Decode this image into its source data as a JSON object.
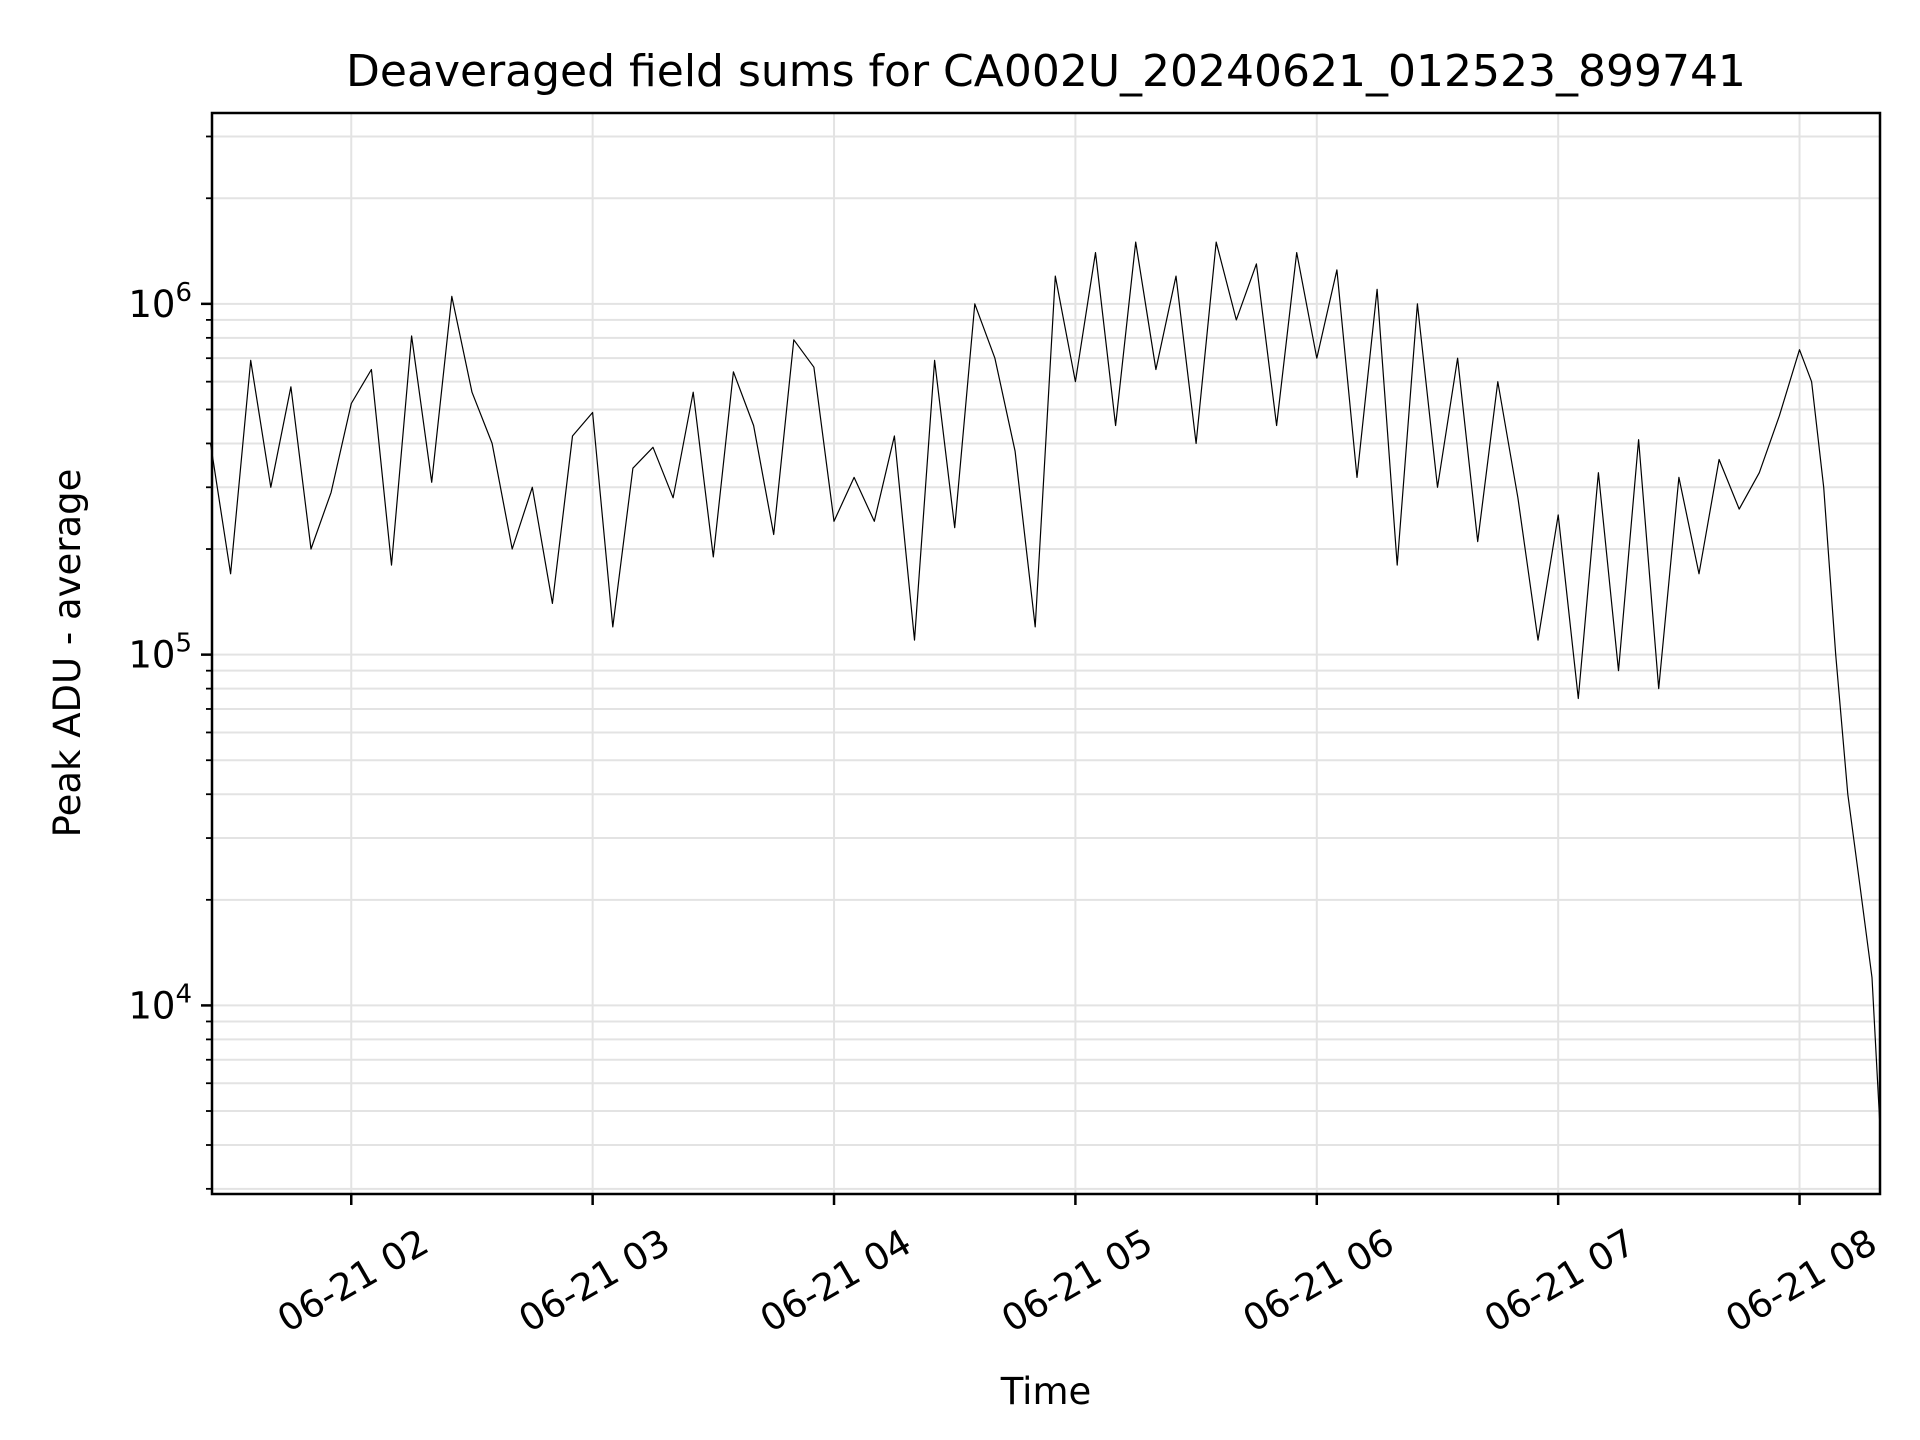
{
  "chart_data": {
    "type": "line",
    "title": "Deaveraged field sums for CA002U_20240621_012523_899741",
    "xlabel": "Time",
    "ylabel": "Peak ADU - average",
    "yscale": "log",
    "ylim": [
      2900,
      3500000
    ],
    "xlim": [
      "2024-06-21T01:25:23",
      "2024-06-21T08:20:00"
    ],
    "grid": true,
    "line_color": "#000000",
    "xticks": [
      {
        "t": "2024-06-21T02:00",
        "label": "06-21 02"
      },
      {
        "t": "2024-06-21T03:00",
        "label": "06-21 03"
      },
      {
        "t": "2024-06-21T04:00",
        "label": "06-21 04"
      },
      {
        "t": "2024-06-21T05:00",
        "label": "06-21 05"
      },
      {
        "t": "2024-06-21T06:00",
        "label": "06-21 06"
      },
      {
        "t": "2024-06-21T07:00",
        "label": "06-21 07"
      },
      {
        "t": "2024-06-21T08:00",
        "label": "06-21 08"
      }
    ],
    "yticks": [
      {
        "value": 10000,
        "base": "10",
        "exp": "4"
      },
      {
        "value": 100000,
        "base": "10",
        "exp": "5"
      },
      {
        "value": 1000000,
        "base": "10",
        "exp": "6"
      }
    ],
    "series": [
      {
        "x": [
          "2024-06-21T01:25",
          "2024-06-21T01:30",
          "2024-06-21T01:35",
          "2024-06-21T01:40",
          "2024-06-21T01:45",
          "2024-06-21T01:50",
          "2024-06-21T01:55",
          "2024-06-21T02:00",
          "2024-06-21T02:05",
          "2024-06-21T02:10",
          "2024-06-21T02:15",
          "2024-06-21T02:20",
          "2024-06-21T02:25",
          "2024-06-21T02:30",
          "2024-06-21T02:35",
          "2024-06-21T02:40",
          "2024-06-21T02:45",
          "2024-06-21T02:50",
          "2024-06-21T02:55",
          "2024-06-21T03:00",
          "2024-06-21T03:05",
          "2024-06-21T03:10",
          "2024-06-21T03:15",
          "2024-06-21T03:20",
          "2024-06-21T03:25",
          "2024-06-21T03:30",
          "2024-06-21T03:35",
          "2024-06-21T03:40",
          "2024-06-21T03:45",
          "2024-06-21T03:50",
          "2024-06-21T03:55",
          "2024-06-21T04:00",
          "2024-06-21T04:05",
          "2024-06-21T04:10",
          "2024-06-21T04:15",
          "2024-06-21T04:20",
          "2024-06-21T04:25",
          "2024-06-21T04:30",
          "2024-06-21T04:35",
          "2024-06-21T04:40",
          "2024-06-21T04:45",
          "2024-06-21T04:50",
          "2024-06-21T04:55",
          "2024-06-21T05:00",
          "2024-06-21T05:05",
          "2024-06-21T05:10",
          "2024-06-21T05:15",
          "2024-06-21T05:20",
          "2024-06-21T05:25",
          "2024-06-21T05:30",
          "2024-06-21T05:35",
          "2024-06-21T05:40",
          "2024-06-21T05:45",
          "2024-06-21T05:50",
          "2024-06-21T05:55",
          "2024-06-21T06:00",
          "2024-06-21T06:05",
          "2024-06-21T06:10",
          "2024-06-21T06:15",
          "2024-06-21T06:20",
          "2024-06-21T06:25",
          "2024-06-21T06:30",
          "2024-06-21T06:35",
          "2024-06-21T06:40",
          "2024-06-21T06:45",
          "2024-06-21T06:50",
          "2024-06-21T06:55",
          "2024-06-21T07:00",
          "2024-06-21T07:05",
          "2024-06-21T07:10",
          "2024-06-21T07:15",
          "2024-06-21T07:20",
          "2024-06-21T07:25",
          "2024-06-21T07:30",
          "2024-06-21T07:35",
          "2024-06-21T07:40",
          "2024-06-21T07:45",
          "2024-06-21T07:50",
          "2024-06-21T07:55",
          "2024-06-21T08:00",
          "2024-06-21T08:03",
          "2024-06-21T08:06",
          "2024-06-21T08:09",
          "2024-06-21T08:12",
          "2024-06-21T08:15",
          "2024-06-21T08:18",
          "2024-06-21T08:20"
        ],
        "y": [
          400000,
          170000,
          690000,
          300000,
          580000,
          200000,
          290000,
          520000,
          650000,
          180000,
          810000,
          310000,
          1050000,
          560000,
          400000,
          200000,
          300000,
          140000,
          420000,
          490000,
          120000,
          340000,
          390000,
          280000,
          560000,
          190000,
          640000,
          450000,
          220000,
          790000,
          660000,
          240000,
          320000,
          240000,
          420000,
          110000,
          690000,
          230000,
          1000000,
          700000,
          380000,
          120000,
          1200000,
          600000,
          1400000,
          450000,
          1500000,
          650000,
          1200000,
          400000,
          1500000,
          900000,
          1300000,
          450000,
          1400000,
          700000,
          1250000,
          320000,
          1100000,
          180000,
          1000000,
          300000,
          700000,
          210000,
          600000,
          280000,
          110000,
          250000,
          75000,
          330000,
          90000,
          410000,
          80000,
          320000,
          170000,
          360000,
          260000,
          330000,
          480000,
          740000,
          600000,
          300000,
          100000,
          40000,
          22000,
          12000,
          4500
        ]
      }
    ]
  }
}
